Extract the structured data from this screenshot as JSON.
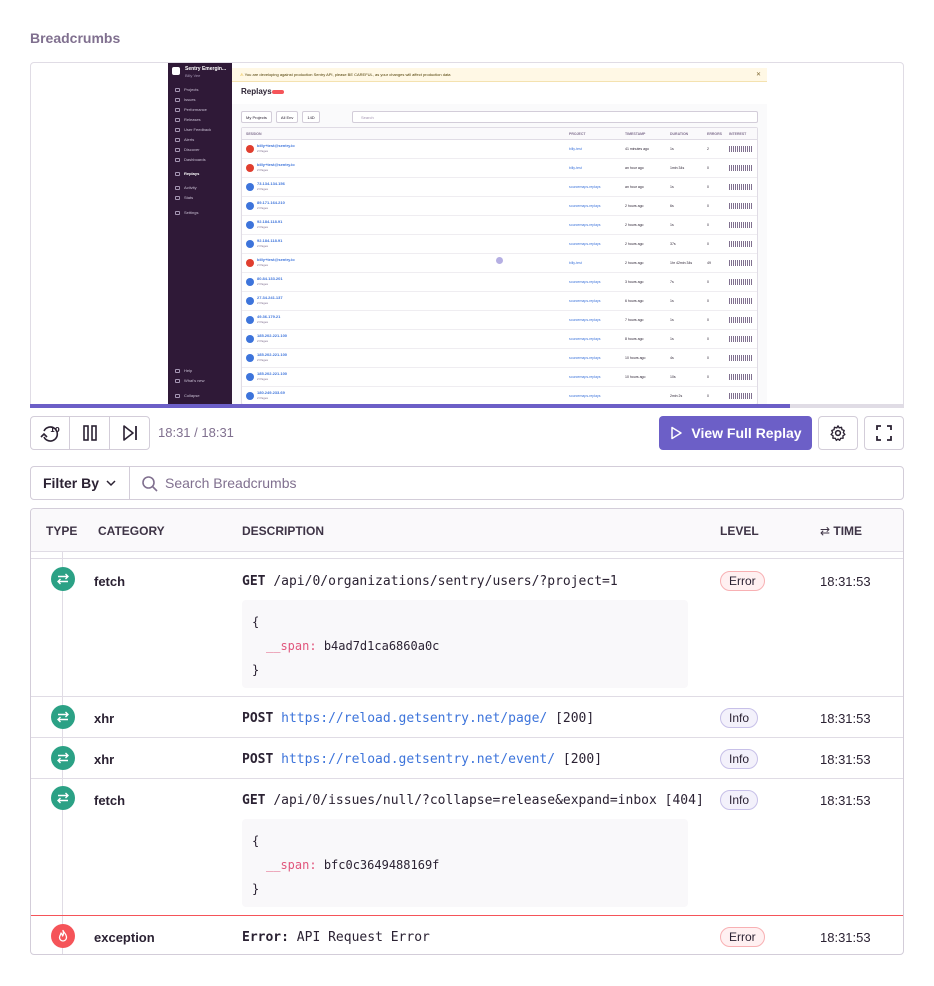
{
  "section_title": "Breadcrumbs",
  "replay_preview": {
    "org_name": "Sentry Emergin...",
    "user_name": "Billy Vee",
    "alert_text": "You are developing against production Sentry API, please BE CAREFUL, as your changes will affect production data",
    "page_title": "Replays",
    "nav_items": [
      "Projects",
      "Issues",
      "Performance",
      "Releases",
      "User Feedback",
      "Alerts",
      "Discover",
      "Dashboards",
      "Replays",
      "Activity",
      "Stats",
      "Settings"
    ],
    "nav_bottom": [
      "Help",
      "What's new",
      "Collapse"
    ],
    "active_nav": "Replays",
    "filters": [
      "My Projects",
      "All Env",
      "14D"
    ],
    "search_placeholder": "Search",
    "columns": [
      "SESSION",
      "PROJECT",
      "TIMESTAMP",
      "DURATION",
      "ERRORS",
      "INTEREST"
    ],
    "rows": [
      {
        "session": "billy+test@sentry.io",
        "pages": "2 Pages",
        "project": "billy-test",
        "timestamp": "41 minutes ago",
        "duration": "1s",
        "errors": "2",
        "avatar": "#e03e2f"
      },
      {
        "session": "billy+test@sentry.io",
        "pages": "2 Pages",
        "project": "billy-test",
        "timestamp": "an hour ago",
        "duration": "1min 34s",
        "errors": "0",
        "avatar": "#e03e2f"
      },
      {
        "session": "73.134.134.156",
        "pages": "2 Pages",
        "project": "sourcemaps-replays",
        "timestamp": "an hour ago",
        "duration": "1s",
        "errors": "0",
        "avatar": "#3d74db"
      },
      {
        "session": "89.171.164.210",
        "pages": "2 Pages",
        "project": "sourcemaps-replays",
        "timestamp": "2 hours ago",
        "duration": "6s",
        "errors": "0",
        "avatar": "#3d74db"
      },
      {
        "session": "92.184.118.91",
        "pages": "2 Pages",
        "project": "sourcemaps-replays",
        "timestamp": "2 hours ago",
        "duration": "1s",
        "errors": "0",
        "avatar": "#3d74db"
      },
      {
        "session": "92.184.118.91",
        "pages": "2 Pages",
        "project": "sourcemaps-replays",
        "timestamp": "2 hours ago",
        "duration": "37s",
        "errors": "0",
        "avatar": "#3d74db"
      },
      {
        "session": "billy+test@sentry.io",
        "pages": "2 Pages",
        "project": "billy-test",
        "timestamp": "2 hours ago",
        "duration": "1hr 42min 34s",
        "errors": "49",
        "avatar": "#e03e2f"
      },
      {
        "session": "80.84.133.201",
        "pages": "2 Pages",
        "project": "sourcemaps-replays",
        "timestamp": "3 hours ago",
        "duration": "7s",
        "errors": "0",
        "avatar": "#3d74db"
      },
      {
        "session": "27.34.241.137",
        "pages": "2 Pages",
        "project": "sourcemaps-replays",
        "timestamp": "6 hours ago",
        "duration": "1s",
        "errors": "0",
        "avatar": "#3d74db"
      },
      {
        "session": "49.36.179.21",
        "pages": "2 Pages",
        "project": "sourcemaps-replays",
        "timestamp": "7 hours ago",
        "duration": "1s",
        "errors": "0",
        "avatar": "#3d74db"
      },
      {
        "session": "185.202.221.100",
        "pages": "2 Pages",
        "project": "sourcemaps-replays",
        "timestamp": "8 hours ago",
        "duration": "1s",
        "errors": "0",
        "avatar": "#3d74db"
      },
      {
        "session": "185.202.221.100",
        "pages": "2 Pages",
        "project": "sourcemaps-replays",
        "timestamp": "10 hours ago",
        "duration": "4s",
        "errors": "0",
        "avatar": "#3d74db"
      },
      {
        "session": "185.202.221.100",
        "pages": "2 Pages",
        "project": "sourcemaps-replays",
        "timestamp": "10 hours ago",
        "duration": "10s",
        "errors": "0",
        "avatar": "#3d74db"
      },
      {
        "session": "180.249.233.69",
        "pages": "2 Pages",
        "project": "sourcemaps-replays",
        "timestamp": "",
        "duration": "2min 2s",
        "errors": "0",
        "avatar": "#3d74db"
      }
    ]
  },
  "player": {
    "progress_fraction": 0.87,
    "current_time": "18:31",
    "total_time": "18:31",
    "time_label": "18:31 / 18:31",
    "rewind_seconds": "10",
    "view_full_replay_label": "View Full Replay"
  },
  "filter_bar": {
    "filter_by_label": "Filter By",
    "search_placeholder": "Search Breadcrumbs"
  },
  "table": {
    "headers": {
      "type": "TYPE",
      "category": "CATEGORY",
      "description": "DESCRIPTION",
      "level": "LEVEL",
      "time": "TIME"
    },
    "rows": [
      {
        "category": "fetch",
        "method": "GET",
        "path": "/api/0/organizations/sentry/users/?project=1",
        "status": "",
        "json_key": "__span:",
        "json_value": "b4ad7d1ca6860a0c",
        "level": "Error",
        "time": "18:31:53"
      },
      {
        "category": "xhr",
        "method": "POST",
        "url": "https://reload.getsentry.net/page/",
        "status": "[200]",
        "level": "Info",
        "time": "18:31:53"
      },
      {
        "category": "xhr",
        "method": "POST",
        "url": "https://reload.getsentry.net/event/",
        "status": "[200]",
        "level": "Info",
        "time": "18:31:53"
      },
      {
        "category": "fetch",
        "method": "GET",
        "path": "/api/0/issues/null/?collapse=release&expand=inbox [404]",
        "json_key": "__span:",
        "json_value": "bfc0c3649488169f",
        "level": "Info",
        "time": "18:31:53"
      },
      {
        "category": "exception",
        "method": "Error:",
        "path": "API Request Error",
        "level": "Error",
        "time": "18:31:53"
      }
    ]
  },
  "colors": {
    "accent": "#6c5fc7",
    "http_icon": "#2ba185",
    "error_icon": "#f55459",
    "link": "#3d74db"
  },
  "icons": {
    "http": "arrows-exchange-icon",
    "exception": "fire-icon"
  }
}
